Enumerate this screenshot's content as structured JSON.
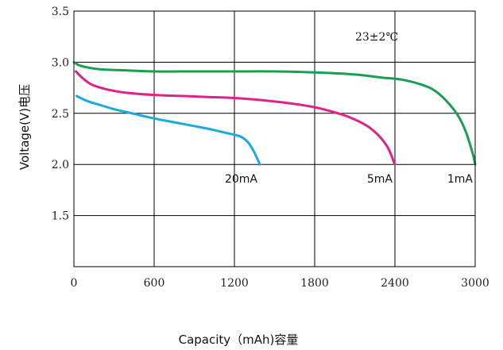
{
  "chart_data": {
    "type": "line",
    "xlabel": "Capacity（mAh)容量",
    "ylabel": "Voltage(V)电压",
    "annotation": "23±2℃",
    "xlim": [
      0,
      3000
    ],
    "ylim": [
      1.0,
      3.5
    ],
    "xticks": [
      0,
      600,
      1200,
      1800,
      2400,
      3000
    ],
    "yticks": [
      1.5,
      2.0,
      2.5,
      3.0,
      3.5
    ],
    "xtick_labels": [
      "0",
      "600",
      "1200",
      "1800",
      "2400",
      "3000"
    ],
    "ytick_labels": [
      "1.5",
      "2.0",
      "2.5",
      "3.0",
      "3.5"
    ],
    "grid": true,
    "series": [
      {
        "name": "20mA",
        "color": "#1aa9e0",
        "x": [
          20,
          100,
          200,
          300,
          400,
          600,
          800,
          1000,
          1100,
          1200,
          1250,
          1300,
          1340,
          1370,
          1390
        ],
        "y": [
          2.67,
          2.62,
          2.58,
          2.54,
          2.51,
          2.45,
          2.4,
          2.35,
          2.32,
          2.29,
          2.27,
          2.22,
          2.14,
          2.06,
          2.0
        ]
      },
      {
        "name": "5mA",
        "color": "#e0218a",
        "x": [
          15,
          60,
          120,
          200,
          300,
          400,
          600,
          800,
          1000,
          1200,
          1400,
          1600,
          1800,
          2000,
          2100,
          2200,
          2280,
          2340,
          2370,
          2390,
          2400
        ],
        "y": [
          2.91,
          2.85,
          2.79,
          2.75,
          2.72,
          2.7,
          2.68,
          2.67,
          2.66,
          2.65,
          2.63,
          2.6,
          2.56,
          2.49,
          2.44,
          2.37,
          2.28,
          2.18,
          2.1,
          2.03,
          2.0
        ]
      },
      {
        "name": "1mA",
        "color": "#18a050",
        "x": [
          0,
          40,
          100,
          200,
          400,
          600,
          900,
          1200,
          1500,
          1800,
          2100,
          2300,
          2450,
          2600,
          2700,
          2800,
          2880,
          2930,
          2960,
          2985,
          3000
        ],
        "y": [
          3.0,
          2.97,
          2.95,
          2.93,
          2.92,
          2.91,
          2.91,
          2.91,
          2.91,
          2.9,
          2.88,
          2.85,
          2.83,
          2.78,
          2.72,
          2.6,
          2.46,
          2.32,
          2.2,
          2.09,
          2.0
        ]
      }
    ]
  }
}
